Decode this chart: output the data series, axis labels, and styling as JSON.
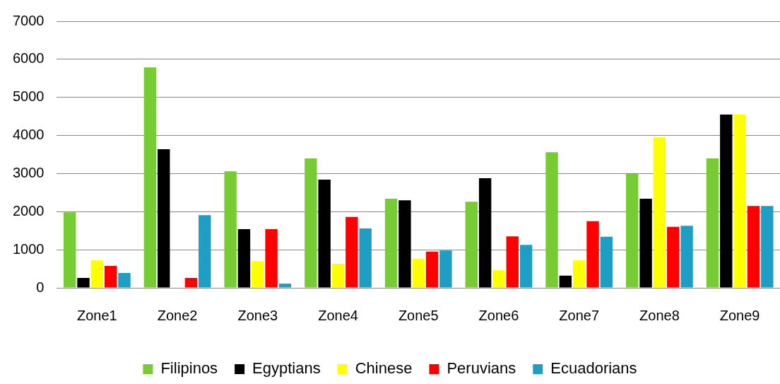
{
  "chart_data": {
    "type": "bar",
    "categories": [
      "Zone1",
      "Zone2",
      "Zone3",
      "Zone4",
      "Zone5",
      "Zone6",
      "Zone7",
      "Zone8",
      "Zone9"
    ],
    "series": [
      {
        "name": "Filipinos",
        "color": "#77cc33",
        "values": [
          1980,
          5790,
          3060,
          3400,
          2340,
          2260,
          3560,
          2990,
          3400
        ]
      },
      {
        "name": "Egyptians",
        "color": "#000000",
        "values": [
          260,
          3640,
          1540,
          2840,
          2300,
          2880,
          320,
          2340,
          4550
        ]
      },
      {
        "name": "Chinese",
        "color": "#ffff00",
        "values": [
          720,
          0,
          700,
          630,
          760,
          460,
          720,
          3950,
          4550
        ]
      },
      {
        "name": "Peruvians",
        "color": "#ff0000",
        "values": [
          575,
          260,
          1540,
          1860,
          950,
          1350,
          1750,
          1600,
          2150
        ]
      },
      {
        "name": "Ecuadorians",
        "color": "#1e9ec4",
        "values": [
          390,
          1910,
          110,
          1560,
          980,
          1130,
          1340,
          1630,
          2150
        ]
      }
    ],
    "ylim": [
      0,
      7000
    ],
    "yticks": [
      0,
      1000,
      2000,
      3000,
      4000,
      5000,
      6000,
      7000
    ],
    "grid": "y",
    "legend": "bottom"
  }
}
